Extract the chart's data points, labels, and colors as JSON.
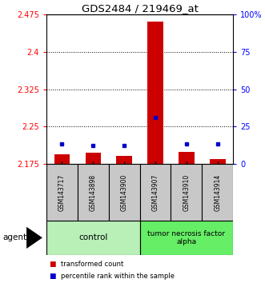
{
  "title": "GDS2484 / 219469_at",
  "samples": [
    "GSM143717",
    "GSM143898",
    "GSM143900",
    "GSM143907",
    "GSM143910",
    "GSM143914"
  ],
  "red_values": [
    2.195,
    2.198,
    2.192,
    2.46,
    2.2,
    2.185
  ],
  "blue_values": [
    2.215,
    2.213,
    2.213,
    2.268,
    2.215,
    2.215
  ],
  "ymin": 2.175,
  "ymax": 2.475,
  "yticks_left": [
    2.175,
    2.25,
    2.325,
    2.4,
    2.475
  ],
  "yticks_right": [
    0,
    25,
    50,
    75,
    100
  ],
  "bar_width": 0.5,
  "red_color": "#cc0000",
  "blue_color": "#0000cc",
  "legend_red": "transformed count",
  "legend_blue": "percentile rank within the sample",
  "agent_label": "agent",
  "group_label_control": "control",
  "group_label_tnf": "tumor necrosis factor\nalpha",
  "control_color": "#b8f0b8",
  "tnf_color": "#66ee66",
  "sample_box_color": "#c8c8c8",
  "bar_base": 2.175
}
